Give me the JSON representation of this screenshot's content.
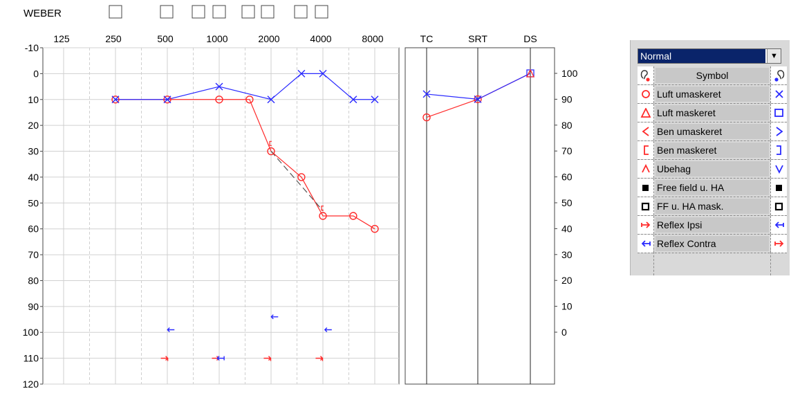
{
  "weber_label": "WEBER",
  "chart_data": [
    {
      "type": "line",
      "name": "audiogram",
      "x_categories": [
        "125",
        "250",
        "500",
        "1000",
        "2000",
        "4000",
        "8000"
      ],
      "x_unit": "Hz (log)",
      "y_ticks": [
        "-10",
        "0",
        "10",
        "20",
        "30",
        "40",
        "50",
        "60",
        "70",
        "80",
        "90",
        "100",
        "110",
        "120"
      ],
      "ylim": [
        -10,
        120
      ],
      "y_inverted": true,
      "grid": true,
      "series": [
        {
          "color": "#ff2a2a",
          "marker": "circle",
          "points": [
            [
              250,
              10
            ],
            [
              500,
              10
            ],
            [
              1000,
              10
            ],
            [
              1500,
              10
            ],
            [
              2000,
              30
            ],
            [
              3000,
              40
            ],
            [
              4000,
              55
            ],
            [
              6000,
              55
            ],
            [
              8000,
              60
            ]
          ]
        },
        {
          "color": "#2a2aff",
          "marker": "x",
          "points": [
            [
              250,
              10
            ],
            [
              500,
              10
            ],
            [
              1000,
              5
            ],
            [
              2000,
              10
            ],
            [
              3000,
              0
            ],
            [
              4000,
              0
            ],
            [
              6000,
              10
            ],
            [
              8000,
              10
            ]
          ]
        },
        {
          "color": "#555555",
          "style": "dashed",
          "points": [
            [
              2000,
              30
            ],
            [
              4000,
              53
            ]
          ]
        }
      ],
      "red_brackets": [
        [
          2000,
          27
        ],
        [
          4000,
          52
        ]
      ],
      "reflex_arrows": [
        {
          "x": 525,
          "y": 99,
          "color": "#2a2aff",
          "dir": "left",
          "stem": false
        },
        {
          "x": 2100,
          "y": 94,
          "color": "#2a2aff",
          "dir": "left",
          "stem": false
        },
        {
          "x": 4300,
          "y": 99,
          "color": "#2a2aff",
          "dir": "left",
          "stem": false
        },
        {
          "x": 480,
          "y": 110,
          "color": "#ff2a2a",
          "dir": "right",
          "stem": true
        },
        {
          "x": 950,
          "y": 110,
          "color": "#ff2a2a",
          "dir": "right",
          "stem": false
        },
        {
          "x": 1020,
          "y": 110,
          "color": "#2a2aff",
          "dir": "left",
          "stem": true
        },
        {
          "x": 1900,
          "y": 110,
          "color": "#ff2a2a",
          "dir": "right",
          "stem": true
        },
        {
          "x": 3800,
          "y": 110,
          "color": "#ff2a2a",
          "dir": "right",
          "stem": true
        }
      ]
    },
    {
      "type": "line",
      "name": "speech",
      "x_categories": [
        "TC",
        "SRT",
        "DS"
      ],
      "y_ticks": [
        "100",
        "90",
        "80",
        "70",
        "60",
        "50",
        "40",
        "30",
        "20",
        "10",
        "0"
      ],
      "ylim": [
        0,
        100
      ],
      "series": [
        {
          "color": "#ff2a2a",
          "marker": "circle",
          "points": [
            [
              "TC",
              83
            ],
            [
              "SRT",
              90
            ],
            [
              "DS",
              100
            ]
          ]
        },
        {
          "color": "#2a2aff",
          "marker": "x",
          "points": [
            [
              "TC",
              92
            ],
            [
              "SRT",
              90
            ],
            [
              "DS",
              100
            ]
          ]
        }
      ],
      "ds_marker": "triangle-square"
    }
  ],
  "legend": {
    "dropdown_value": "Normal",
    "header": "Symbol",
    "items": [
      {
        "label": "Luft umaskeret",
        "left_icon": "circle-red",
        "right_icon": "x-blue"
      },
      {
        "label": "Luft maskeret",
        "left_icon": "triangle-red",
        "right_icon": "square-blue"
      },
      {
        "label": "Ben umaskeret",
        "left_icon": "lt-red",
        "right_icon": "gt-blue"
      },
      {
        "label": "Ben maskeret",
        "left_icon": "bracket-left-red",
        "right_icon": "bracket-right-blue"
      },
      {
        "label": "Ubehag",
        "left_icon": "caret-up-red",
        "right_icon": "caret-down-blue"
      },
      {
        "label": "Free field u. HA",
        "left_icon": "filled-square-black",
        "right_icon": "filled-square-black"
      },
      {
        "label": "FF u. HA mask.",
        "left_icon": "hollow-square-black",
        "right_icon": "hollow-square-black"
      },
      {
        "label": "Reflex Ipsi",
        "left_icon": "arrow-right-red",
        "right_icon": "arrow-left-blue"
      },
      {
        "label": "Reflex Contra",
        "left_icon": "arrow-left-blue",
        "right_icon": "arrow-right-red"
      }
    ]
  }
}
